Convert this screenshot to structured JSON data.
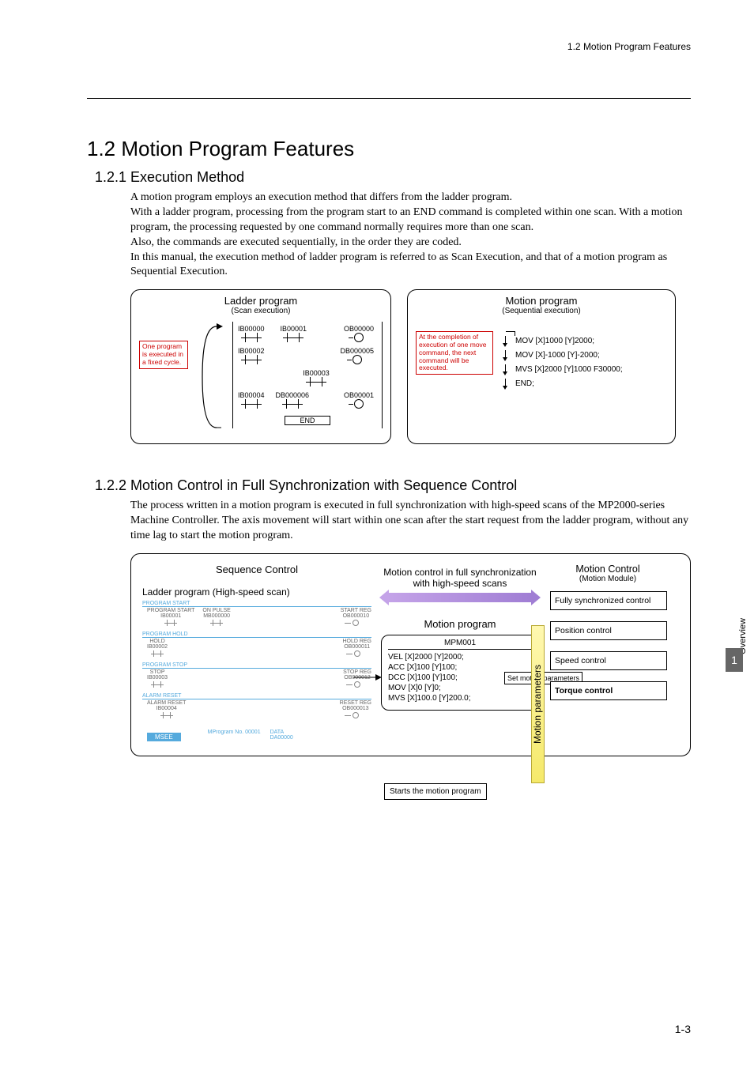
{
  "header": {
    "breadcrumb": "1.2  Motion Program Features"
  },
  "section": {
    "title": "1.2  Motion Program Features",
    "s1": {
      "title": "1.2.1  Execution Method",
      "para": "A motion program employs an execution method that differs from the ladder program.\nWith a ladder program, processing from the program start to an END command is completed within one scan. With a motion program, the processing requested by one command normally requires more than one scan.\nAlso, the commands are executed sequentially, in the order they are coded.\nIn this manual, the execution method of ladder program is referred to as Scan Execution, and that of a motion program as Sequential Execution."
    },
    "diag1": {
      "left": {
        "title": "Ladder program",
        "sub": "(Scan execution)",
        "note": "One program is executed in a fixed cycle.",
        "row1": {
          "a": "IB00000",
          "b": "IB00001",
          "out": "OB00000"
        },
        "row2": {
          "a": "IB00002",
          "out": "DB000005"
        },
        "row3": {
          "a": "IB00003"
        },
        "row4": {
          "a": "IB00004",
          "b": "DB000006",
          "out": "OB00001"
        },
        "end": "END"
      },
      "right": {
        "title": "Motion program",
        "sub": "(Sequential execution)",
        "note": "At the completion of execution of one move command, the next command will be executed.",
        "lines": [
          "MOV [X]1000 [Y]2000;",
          "MOV [X]-1000 [Y]-2000;",
          "MVS [X]2000 [Y]1000 F30000;",
          "END;"
        ]
      }
    },
    "s2": {
      "title": "1.2.2  Motion Control in Full Synchronization with Sequence Control",
      "para": "The process written in a motion program is executed in full synchronization with high-speed scans of the MP2000-series Machine Controller. The axis movement will start within one scan after the start request from the ladder program, without any time lag to start the motion program."
    },
    "diag2": {
      "seq_title": "Sequence Control",
      "ladder_title": "Ladder program (High-speed scan)",
      "groups": [
        {
          "label": "PROGRAM START",
          "left": [
            "PROGRAM START\nIB00001",
            "ON PULSE\nMB000000"
          ],
          "right": "START REG\nOB000010"
        },
        {
          "label": "PROGRAM HOLD",
          "left": [
            "HOLD\nIB00002"
          ],
          "right": "HOLD REG\nOB000011"
        },
        {
          "label": "PROGRAM STOP",
          "left": [
            "STOP\nIB00003"
          ],
          "right": "STOP REG\nOB000012"
        },
        {
          "label": "ALARM RESET",
          "left": [
            "ALARM RESET\nIB00004"
          ],
          "right": "RESET REG\nOB000013"
        }
      ],
      "msee_row": {
        "badge": "MSEE",
        "a": "MProgram No.  00001",
        "b": "DATA\nDA00000"
      },
      "starts": "Starts the motion program",
      "sync_text": "Motion control in full synchronization with high-speed scans",
      "mp_label": "Motion program",
      "mp_name": "MPM001",
      "mp_code": "VEL [X]2000 [Y]2000;\nACC [X]100 [Y]100;\nDCC [X]100 [Y]100;\nMOV [X]0 [Y]0;\nMVS [X]100.0 [Y]200.0;",
      "set_label": "Set motion parameters",
      "mc_title": "Motion Control",
      "mc_sub": "(Motion Module)",
      "param_label": "Motion parameters",
      "boxes": [
        "Fully synchronized control",
        "Position control",
        "Speed control",
        "Torque control"
      ]
    }
  },
  "side": {
    "tab": "Overview",
    "chapter": "1"
  },
  "footer": {
    "page": "1-3"
  }
}
